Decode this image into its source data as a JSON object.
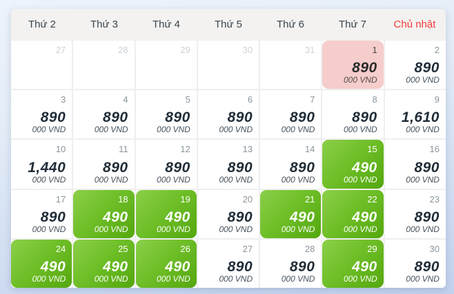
{
  "page": {
    "background_top": "#edf3fa",
    "background_bottom": "#c2d1ed"
  },
  "calendar": {
    "price_unit": "000 VND",
    "weekdays": [
      {
        "label": "Thứ 2",
        "highlight": false
      },
      {
        "label": "Thứ 3",
        "highlight": false
      },
      {
        "label": "Thứ 4",
        "highlight": false
      },
      {
        "label": "Thứ 5",
        "highlight": false
      },
      {
        "label": "Thứ 6",
        "highlight": false
      },
      {
        "label": "Thứ 7",
        "highlight": false
      },
      {
        "label": "Chủ nhật",
        "highlight": true
      }
    ],
    "colors": {
      "weekend_red": "#f23b3d",
      "cheap_start": "#8ccf4a",
      "cheap_end": "#54a70d",
      "selected_bg": "#f5cdcc",
      "grid_line": "#efefef",
      "header_bg": "#f4f2f0",
      "muted_day": "#cdd2d7",
      "day_color": "#8b959c",
      "price_color": "#202d38"
    },
    "rows": [
      [
        {
          "day": "27",
          "muted": true
        },
        {
          "day": "28",
          "muted": true
        },
        {
          "day": "29",
          "muted": true
        },
        {
          "day": "30",
          "muted": true
        },
        {
          "day": "31",
          "muted": true
        },
        {
          "day": "1",
          "price": "890",
          "style": "selected"
        },
        {
          "day": "2",
          "price": "890"
        }
      ],
      [
        {
          "day": "3",
          "price": "890"
        },
        {
          "day": "4",
          "price": "890"
        },
        {
          "day": "5",
          "price": "890"
        },
        {
          "day": "6",
          "price": "890"
        },
        {
          "day": "7",
          "price": "890"
        },
        {
          "day": "8",
          "price": "890"
        },
        {
          "day": "9",
          "price": "1,610"
        }
      ],
      [
        {
          "day": "10",
          "price": "1,440"
        },
        {
          "day": "11",
          "price": "890"
        },
        {
          "day": "12",
          "price": "890"
        },
        {
          "day": "13",
          "price": "890"
        },
        {
          "day": "14",
          "price": "890"
        },
        {
          "day": "15",
          "price": "490",
          "style": "cheap"
        },
        {
          "day": "16",
          "price": "890"
        }
      ],
      [
        {
          "day": "17",
          "price": "890"
        },
        {
          "day": "18",
          "price": "490",
          "style": "cheap"
        },
        {
          "day": "19",
          "price": "490",
          "style": "cheap"
        },
        {
          "day": "20",
          "price": "890"
        },
        {
          "day": "21",
          "price": "490",
          "style": "cheap"
        },
        {
          "day": "22",
          "price": "490",
          "style": "cheap"
        },
        {
          "day": "23",
          "price": "890"
        }
      ],
      [
        {
          "day": "24",
          "price": "490",
          "style": "cheap"
        },
        {
          "day": "25",
          "price": "490",
          "style": "cheap"
        },
        {
          "day": "26",
          "price": "490",
          "style": "cheap"
        },
        {
          "day": "27",
          "price": "890"
        },
        {
          "day": "28",
          "price": "890"
        },
        {
          "day": "29",
          "price": "490",
          "style": "cheap"
        },
        {
          "day": "30",
          "price": "890"
        }
      ]
    ]
  }
}
